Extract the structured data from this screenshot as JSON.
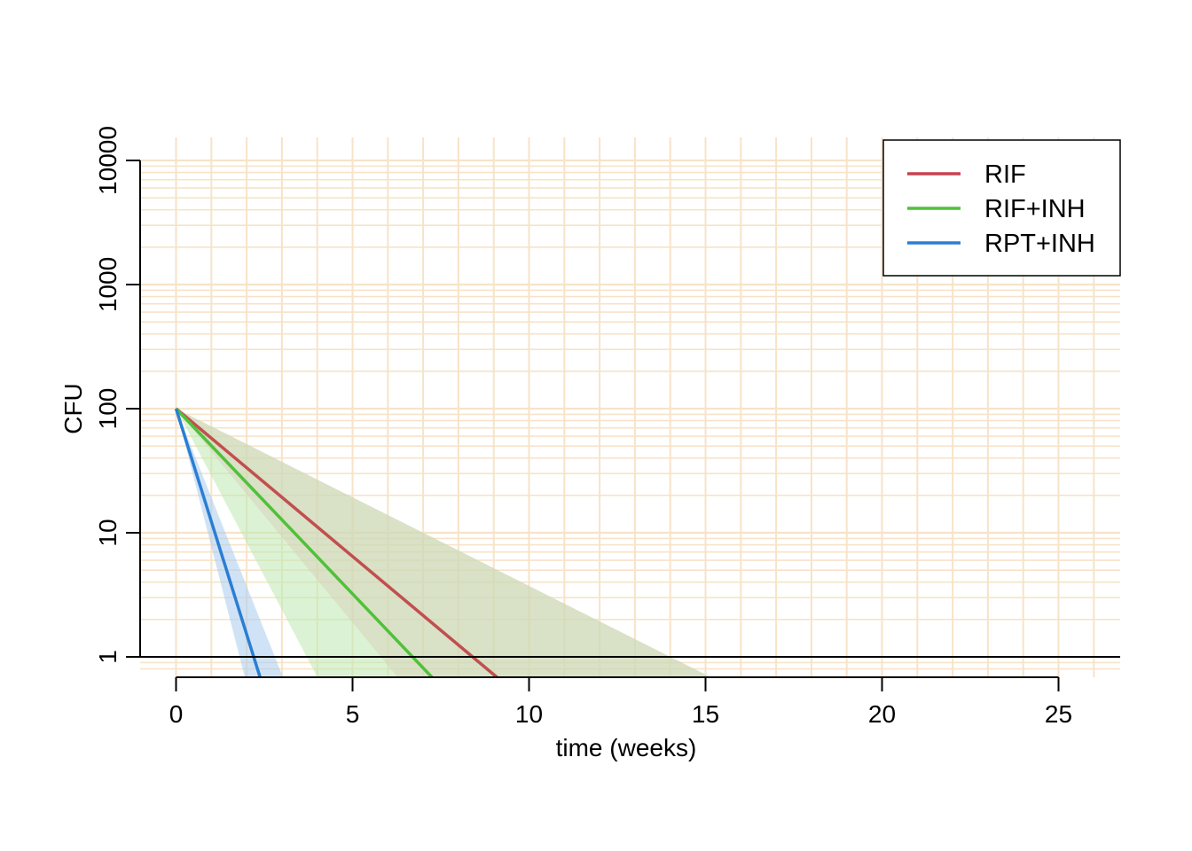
{
  "chart_data": {
    "type": "line",
    "title": "",
    "xlabel": "time (weeks)",
    "ylabel": "CFU",
    "xlim": [
      0,
      26
    ],
    "ylim": [
      0.75,
      10000
    ],
    "y_scale": "log",
    "grid": true,
    "grid_color": "#f7e3c8",
    "x_ticks": [
      0,
      5,
      10,
      15,
      20,
      25
    ],
    "x_tick_labels": [
      "0",
      "5",
      "10",
      "15",
      "20",
      "25"
    ],
    "y_ticks": [
      1,
      10,
      100,
      1000,
      10000
    ],
    "y_tick_labels": [
      "1",
      "10",
      "100",
      "1000",
      "10000"
    ],
    "legend_position": "top-right",
    "series": [
      {
        "name": "RIF",
        "color": "#c8414f",
        "line_color": "#c14f4f",
        "band_color": "#f5b8c6",
        "x": [
          0,
          8.4
        ],
        "y": [
          100,
          1
        ],
        "band_upper_x": [
          0,
          14
        ],
        "band_upper_y": [
          100,
          1
        ],
        "band_lower_x": [
          0,
          5.8
        ],
        "band_lower_y": [
          100,
          1
        ]
      },
      {
        "name": "RIF+INH",
        "color": "#4fc13a",
        "line_color": "#4fc13a",
        "band_color": "#bdeab0",
        "x": [
          0,
          6.7
        ],
        "y": [
          100,
          1
        ],
        "band_upper_x": [
          0,
          14
        ],
        "band_upper_y": [
          100,
          1
        ],
        "band_lower_x": [
          0,
          3.7
        ],
        "band_lower_y": [
          100,
          1
        ]
      },
      {
        "name": "RPT+INH",
        "color": "#2a7ed3",
        "line_color": "#2a7ed3",
        "band_color": "#a9ccee",
        "x": [
          0,
          2.2
        ],
        "y": [
          100,
          1
        ],
        "band_upper_x": [
          0,
          2.8
        ],
        "band_upper_y": [
          100,
          1
        ],
        "band_lower_x": [
          0,
          1.8
        ],
        "band_lower_y": [
          100,
          1
        ]
      }
    ]
  }
}
